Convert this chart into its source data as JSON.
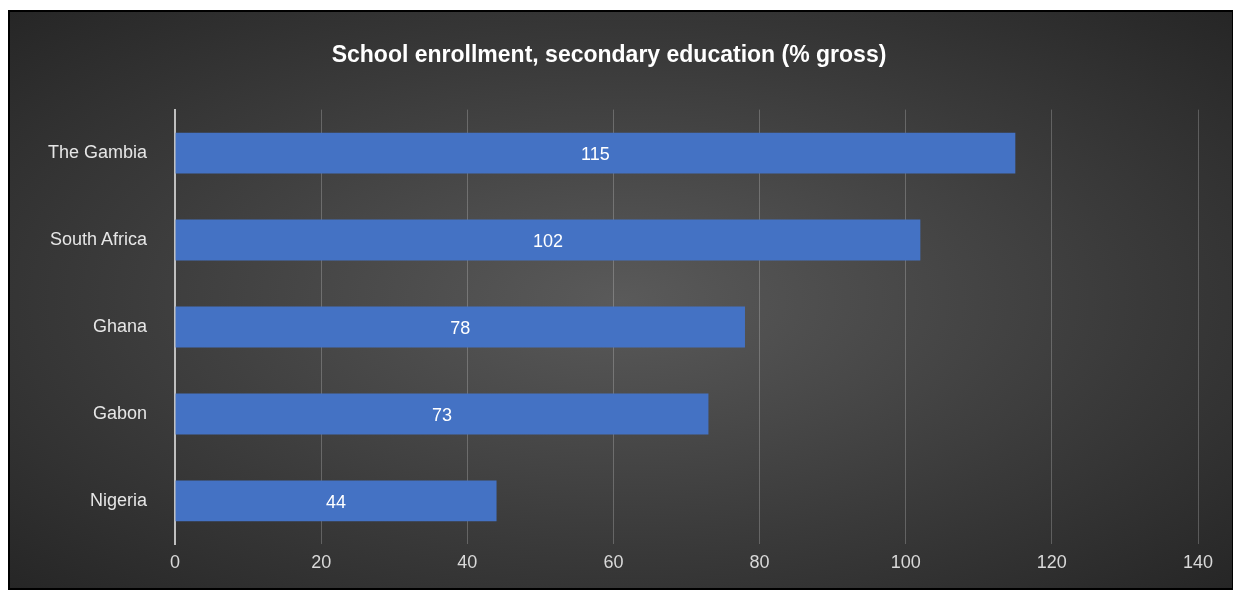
{
  "chart_data": {
    "type": "bar",
    "orientation": "horizontal",
    "title": "School enrollment, secondary education (% gross)",
    "categories": [
      "The Gambia",
      "South Africa",
      "Ghana",
      "Gabon",
      "Nigeria"
    ],
    "values": [
      115,
      102,
      78,
      73,
      44
    ],
    "color": "#4472c4",
    "xlim": [
      0,
      140
    ],
    "xticks": [
      0,
      20,
      40,
      60,
      80,
      100,
      120,
      140
    ],
    "grid": "x",
    "data_labels": true
  }
}
